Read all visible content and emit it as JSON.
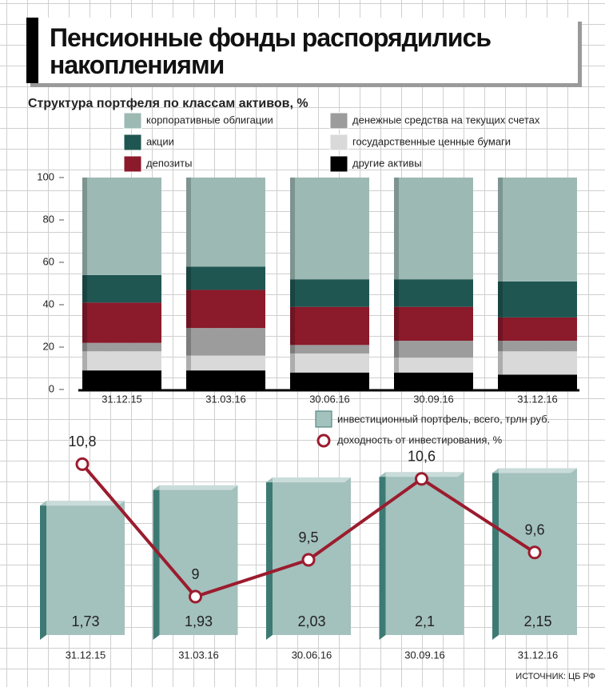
{
  "title": "Пенсионные фонды распорядились накоплениями",
  "source": "ИСТОЧНИК: ЦБ РФ",
  "chart_data": [
    {
      "type": "bar",
      "stacked": true,
      "title": "Структура портфеля по классам активов, %",
      "categories": [
        "31.12.15",
        "31.03.16",
        "30.06.16",
        "30.09.16",
        "31.12.16"
      ],
      "series": [
        {
          "name": "другие активы",
          "color": "#000000",
          "values": [
            9,
            9,
            8,
            8,
            7
          ]
        },
        {
          "name": "государственные ценные бумаги",
          "color": "#d9d9d9",
          "values": [
            9,
            7,
            9,
            7,
            11
          ]
        },
        {
          "name": "денежные средства на текущих счетах",
          "color": "#9c9c9c",
          "values": [
            4,
            13,
            4,
            8,
            5
          ]
        },
        {
          "name": "депозиты",
          "color": "#8b1a2b",
          "values": [
            19,
            18,
            18,
            16,
            11
          ]
        },
        {
          "name": "акции",
          "color": "#1f5652",
          "values": [
            13,
            11,
            13,
            13,
            17
          ]
        },
        {
          "name": "корпоративные облигации",
          "color": "#9db9b4",
          "values": [
            46,
            42,
            48,
            48,
            49
          ]
        }
      ],
      "ylim": [
        0,
        100
      ],
      "yticks": [
        0,
        20,
        40,
        60,
        80,
        100
      ]
    },
    {
      "type": "bar",
      "categories": [
        "31.12.15",
        "31.03.16",
        "30.06.16",
        "30.09.16",
        "31.12.16"
      ],
      "series": [
        {
          "name": "инвестиционный портфель, всего, трлн руб.",
          "type": "bar",
          "color": "#a3c1bd",
          "values": [
            1.73,
            1.93,
            2.03,
            2.1,
            2.15
          ],
          "value_labels": [
            "1,73",
            "1,93",
            "2,03",
            "2,1",
            "2,15"
          ]
        },
        {
          "name": "доходность от инвестирования, %",
          "type": "line",
          "color": "#9b1c2e",
          "values": [
            10.8,
            9,
            9.5,
            10.6,
            9.6
          ],
          "value_labels": [
            "10,8",
            "9",
            "9,5",
            "10,6",
            "9,6"
          ]
        }
      ]
    }
  ]
}
